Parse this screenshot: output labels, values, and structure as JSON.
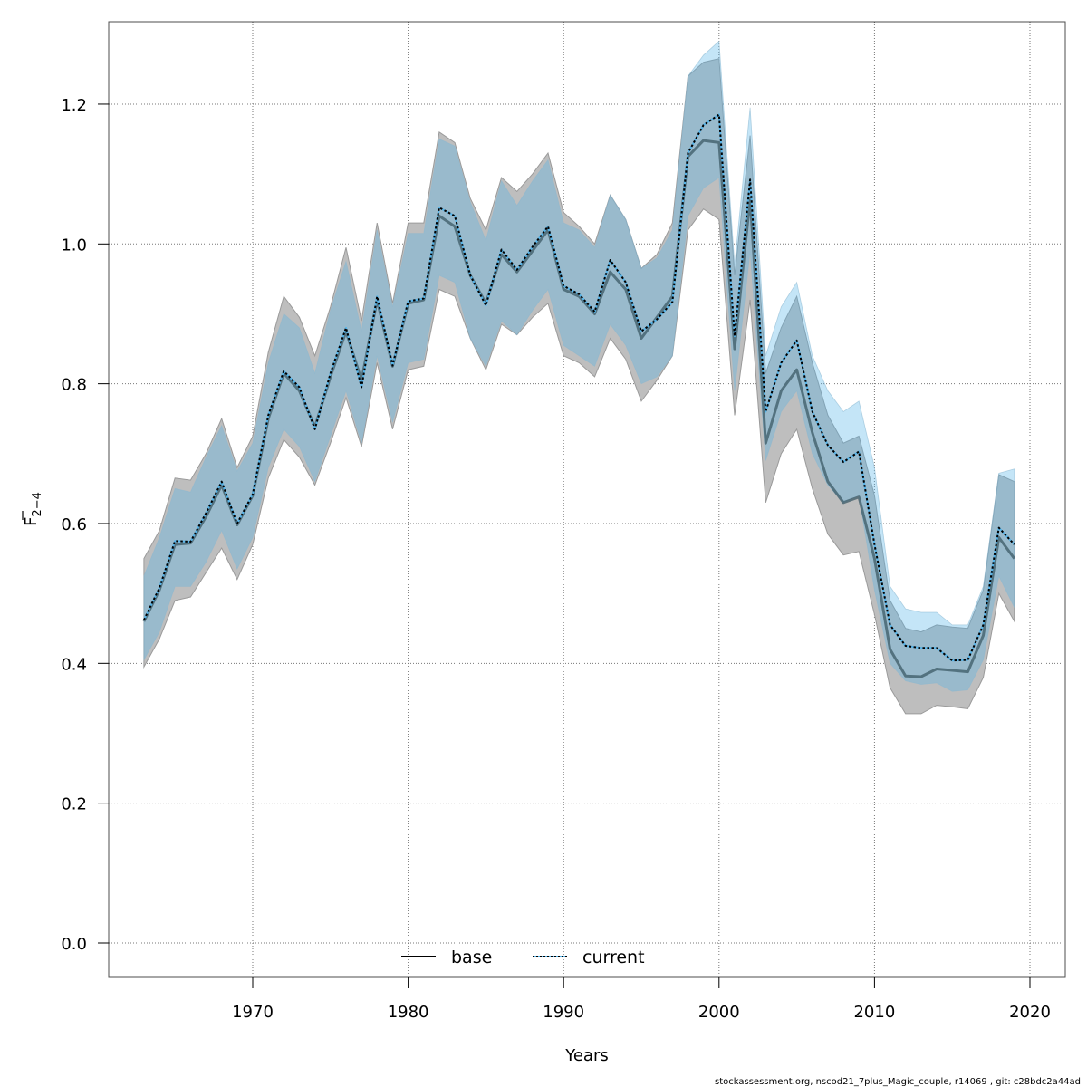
{
  "chart_data": {
    "type": "area",
    "title": "",
    "xlabel": "Years",
    "ylabel": "F̅ 2-4",
    "ylabel_main": "F",
    "ylabel_sub": "2−4",
    "xlim": [
      1961,
      2021.5
    ],
    "ylim": [
      -0.05,
      1.3
    ],
    "x_ticks": [
      1970,
      1980,
      1990,
      2000,
      2010,
      2020
    ],
    "x_tick_labels": [
      "1970",
      "1980",
      "1990",
      "2000",
      "2010",
      "2020"
    ],
    "y_ticks": [
      0.0,
      0.2,
      0.4,
      0.6,
      0.8,
      1.0,
      1.2
    ],
    "y_tick_labels": [
      "0.0",
      "0.2",
      "0.4",
      "0.6",
      "0.8",
      "1.0",
      "1.2"
    ],
    "grid": true,
    "legend_position": "bottom-center",
    "x": [
      1963,
      1964,
      1965,
      1966,
      1967,
      1968,
      1969,
      1970,
      1971,
      1972,
      1973,
      1974,
      1975,
      1976,
      1977,
      1978,
      1979,
      1980,
      1981,
      1982,
      1983,
      1984,
      1985,
      1986,
      1987,
      1988,
      1989,
      1990,
      1991,
      1992,
      1993,
      1994,
      1995,
      1996,
      1997,
      1998,
      1999,
      2000,
      2001,
      2002,
      2003,
      2004,
      2005,
      2006,
      2007,
      2008,
      2009,
      2010,
      2011,
      2012,
      2013,
      2014,
      2015,
      2016,
      2017,
      2018,
      2019
    ],
    "series": [
      {
        "name": "base",
        "line_style": "solid",
        "line_color": "#000000",
        "band_color": "#bebebe",
        "values": [
          0.46,
          0.505,
          0.57,
          0.572,
          0.61,
          0.655,
          0.598,
          0.64,
          0.75,
          0.815,
          0.79,
          0.738,
          0.81,
          0.875,
          0.805,
          0.92,
          0.825,
          0.915,
          0.92,
          1.04,
          1.025,
          0.955,
          0.915,
          0.985,
          0.96,
          0.99,
          1.02,
          0.935,
          0.925,
          0.9,
          0.96,
          0.935,
          0.865,
          0.895,
          0.925,
          1.125,
          1.148,
          1.145,
          0.85,
          1.065,
          0.715,
          0.79,
          0.82,
          0.73,
          0.66,
          0.63,
          0.638,
          0.55,
          0.42,
          0.382,
          0.381,
          0.392,
          0.39,
          0.388,
          0.44,
          0.58,
          0.55
        ],
        "lower": [
          0.395,
          0.435,
          0.49,
          0.495,
          0.53,
          0.565,
          0.52,
          0.57,
          0.665,
          0.72,
          0.695,
          0.655,
          0.715,
          0.78,
          0.71,
          0.83,
          0.735,
          0.82,
          0.825,
          0.935,
          0.925,
          0.865,
          0.82,
          0.885,
          0.87,
          0.895,
          0.915,
          0.84,
          0.83,
          0.81,
          0.865,
          0.835,
          0.775,
          0.805,
          0.84,
          1.02,
          1.05,
          1.035,
          0.755,
          0.92,
          0.63,
          0.7,
          0.735,
          0.65,
          0.585,
          0.555,
          0.56,
          0.47,
          0.365,
          0.328,
          0.328,
          0.34,
          0.338,
          0.335,
          0.38,
          0.5,
          0.46
        ],
        "upper": [
          0.55,
          0.59,
          0.665,
          0.662,
          0.7,
          0.75,
          0.68,
          0.725,
          0.845,
          0.925,
          0.895,
          0.84,
          0.91,
          0.995,
          0.89,
          1.03,
          0.915,
          1.03,
          1.03,
          1.16,
          1.145,
          1.065,
          1.02,
          1.095,
          1.075,
          1.1,
          1.13,
          1.045,
          1.025,
          1.0,
          1.07,
          1.035,
          0.965,
          0.985,
          1.03,
          1.24,
          1.26,
          1.265,
          0.955,
          1.155,
          0.815,
          0.88,
          0.925,
          0.83,
          0.755,
          0.715,
          0.725,
          0.64,
          0.49,
          0.45,
          0.445,
          0.455,
          0.452,
          0.45,
          0.505,
          0.67,
          0.66
        ]
      },
      {
        "name": "current",
        "line_style": "dotted",
        "line_color": "#000000",
        "underlay_color": "#56b4e9",
        "band_color": "#56b4e9",
        "band_opacity": 0.35,
        "values": [
          0.462,
          0.508,
          0.575,
          0.574,
          0.615,
          0.66,
          0.6,
          0.642,
          0.755,
          0.818,
          0.795,
          0.735,
          0.815,
          0.88,
          0.795,
          0.925,
          0.826,
          0.918,
          0.922,
          1.052,
          1.04,
          0.955,
          0.912,
          0.992,
          0.963,
          0.996,
          1.025,
          0.94,
          0.928,
          0.903,
          0.977,
          0.945,
          0.875,
          0.892,
          0.917,
          1.13,
          1.17,
          1.185,
          0.868,
          1.092,
          0.76,
          0.83,
          0.862,
          0.76,
          0.712,
          0.688,
          0.703,
          0.57,
          0.455,
          0.425,
          0.422,
          0.422,
          0.404,
          0.405,
          0.455,
          0.594,
          0.57
        ],
        "lower": [
          0.405,
          0.445,
          0.51,
          0.51,
          0.545,
          0.59,
          0.535,
          0.58,
          0.68,
          0.735,
          0.71,
          0.66,
          0.725,
          0.79,
          0.715,
          0.84,
          0.745,
          0.83,
          0.835,
          0.955,
          0.945,
          0.865,
          0.825,
          0.89,
          0.87,
          0.905,
          0.935,
          0.855,
          0.84,
          0.825,
          0.885,
          0.855,
          0.8,
          0.81,
          0.84,
          1.04,
          1.08,
          1.095,
          0.79,
          0.99,
          0.69,
          0.76,
          0.79,
          0.7,
          0.655,
          0.63,
          0.64,
          0.505,
          0.4,
          0.375,
          0.37,
          0.372,
          0.36,
          0.362,
          0.405,
          0.525,
          0.48
        ],
        "upper": [
          0.525,
          0.58,
          0.65,
          0.645,
          0.695,
          0.74,
          0.675,
          0.715,
          0.83,
          0.9,
          0.88,
          0.815,
          0.905,
          0.975,
          0.875,
          1.02,
          0.91,
          1.015,
          1.015,
          1.15,
          1.14,
          1.06,
          1.005,
          1.09,
          1.055,
          1.09,
          1.12,
          1.03,
          1.02,
          0.995,
          1.07,
          1.035,
          0.965,
          0.98,
          1.02,
          1.24,
          1.27,
          1.29,
          0.97,
          1.195,
          0.84,
          0.91,
          0.945,
          0.84,
          0.79,
          0.76,
          0.775,
          0.68,
          0.51,
          0.478,
          0.473,
          0.473,
          0.455,
          0.455,
          0.51,
          0.672,
          0.678
        ]
      }
    ]
  },
  "legend": {
    "items": [
      {
        "label": "base",
        "style": "solid"
      },
      {
        "label": "current",
        "style": "dotted"
      }
    ]
  },
  "footer": {
    "text": "stockassessment.org, nscod21_7plus_Magic_couple, r14069 , git: c28bdc2a44ad"
  },
  "colors": {
    "base_band": "#bebebe",
    "current_band": "#56b4e9",
    "grid": "#808080",
    "axis": "#000000"
  }
}
